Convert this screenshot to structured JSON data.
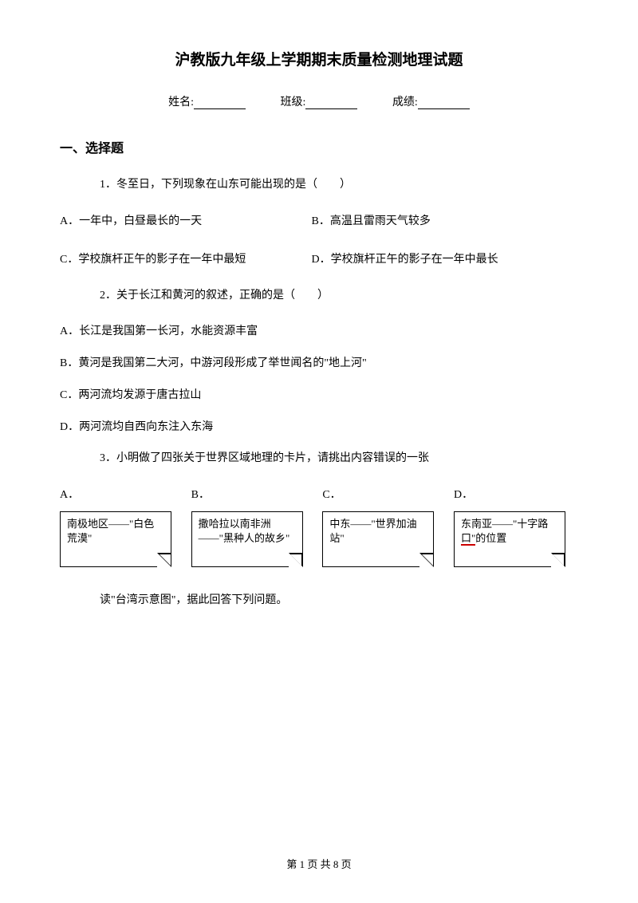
{
  "title": "沪教版九年级上学期期末质量检测地理试题",
  "info": {
    "name_label": "姓名:",
    "class_label": "班级:",
    "score_label": "成绩:"
  },
  "section1": {
    "title": "一、选择题"
  },
  "q1": {
    "text": "1．冬至日，下列现象在山东可能出现的是（　　）",
    "optA": "A．一年中，白昼最长的一天",
    "optB": "B．高温且雷雨天气较多",
    "optC": "C．学校旗杆正午的影子在一年中最短",
    "optD": "D．学校旗杆正午的影子在一年中最长"
  },
  "q2": {
    "text": "2．关于长江和黄河的叙述，正确的是（　　）",
    "optA": "A．长江是我国第一长河，水能资源丰富",
    "optB": "B．黄河是我国第二大河，中游河段形成了举世闻名的\"地上河\"",
    "optC": "C．两河流均发源于唐古拉山",
    "optD": "D．两河流均自西向东注入东海"
  },
  "q3": {
    "text": "3．小明做了四张关于世界区域地理的卡片，请挑出内容错误的一张",
    "labelA": "A．",
    "labelB": "B．",
    "labelC": "C．",
    "labelD": "D．",
    "cardA": "南极地区——\"白色荒漠\"",
    "cardB": "撒哈拉以南非洲——\"黑种人的故乡\"",
    "cardC": "中东——\"世界加油站\"",
    "cardD_p1": "东南亚——\"十字路",
    "cardD_p2": "口\"",
    "cardD_p3": "的位置"
  },
  "reading": {
    "text": "读\"台湾示意图\"，据此回答下列问题。"
  },
  "footer": {
    "text": "第 1 页 共 8 页"
  }
}
